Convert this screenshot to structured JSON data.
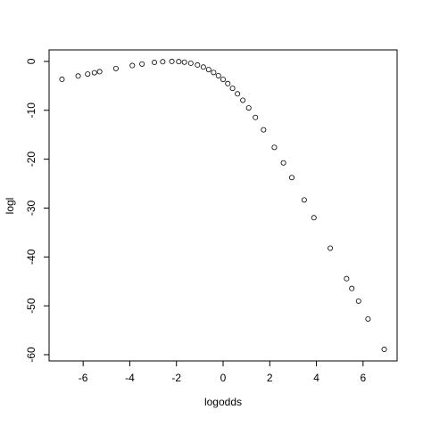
{
  "chart_data": {
    "type": "scatter",
    "x_label": "logodds",
    "y_label": "logl",
    "x": [
      -6.9068,
      -6.2126,
      -5.8061,
      -5.5175,
      -5.2933,
      -4.5951,
      -3.8918,
      -3.4761,
      -2.9444,
      -2.5867,
      -2.1972,
      -1.901,
      -1.6582,
      -1.3863,
      -1.0986,
      -0.8473,
      -0.619,
      -0.4055,
      -0.2007,
      0,
      0.2007,
      0.4055,
      0.619,
      0.8473,
      1.0986,
      1.3863,
      1.7346,
      2.1972,
      2.5867,
      2.9444,
      3.4761,
      3.8918,
      4.5951,
      5.2933,
      5.5175,
      5.8061,
      6.2126,
      6.9068
    ],
    "values": [
      -3.6659,
      -2.9818,
      -2.5854,
      -2.3067,
      -2.0926,
      -1.4448,
      -0.843,
      -0.5299,
      -0.2065,
      -0.0616,
      0,
      -0.0428,
      -0.1509,
      -0.3669,
      -0.7246,
      -1.1632,
      -1.676,
      -2.2629,
      -2.9282,
      -3.6806,
      -4.5336,
      -5.5066,
      -6.6284,
      -7.9416,
      -9.5135,
      -11.4573,
      -13.9858,
      -17.5778,
      -20.7551,
      -23.7621,
      -28.3387,
      -31.9776,
      -38.2058,
      -44.439,
      -46.4463,
      -49.0345,
      -52.6826,
      -58.92
    ],
    "color": "#000000",
    "xlim": [
      -7.46,
      7.46
    ],
    "ylim": [
      -61.28,
      2.357
    ],
    "xticks": [
      -6,
      -4,
      -2,
      0,
      2,
      4,
      6
    ],
    "yticks": [
      0,
      -10,
      -20,
      -30,
      -40,
      -50,
      -60
    ]
  }
}
